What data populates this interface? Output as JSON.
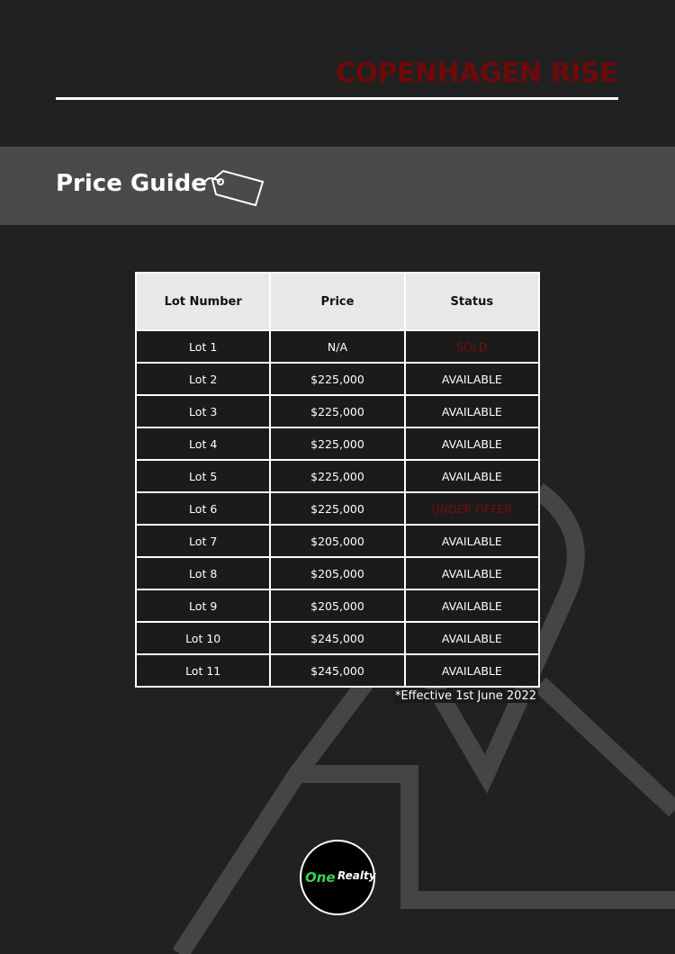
{
  "header": {
    "title": "COPENHAGEN RISE"
  },
  "section": {
    "title": "Price Guide"
  },
  "table": {
    "columns": [
      "Lot Number",
      "Price",
      "Status"
    ],
    "rows": [
      {
        "lot": "Lot 1",
        "price": "N/A",
        "status": "SOLD",
        "status_color": "#7a0c0c"
      },
      {
        "lot": "Lot 2",
        "price": "$225,000",
        "status": "AVAILABLE",
        "status_color": "#ffffff"
      },
      {
        "lot": "Lot 3",
        "price": "$225,000",
        "status": "AVAILABLE",
        "status_color": "#ffffff"
      },
      {
        "lot": "Lot 4",
        "price": "$225,000",
        "status": "AVAILABLE",
        "status_color": "#ffffff"
      },
      {
        "lot": "Lot 5",
        "price": "$225,000",
        "status": "AVAILABLE",
        "status_color": "#ffffff"
      },
      {
        "lot": "Lot 6",
        "price": "$225,000",
        "status": "UNDER OFFER",
        "status_color": "#7a0c0c"
      },
      {
        "lot": "Lot 7",
        "price": "$205,000",
        "status": "AVAILABLE",
        "status_color": "#ffffff"
      },
      {
        "lot": "Lot 8",
        "price": "$205,000",
        "status": "AVAILABLE",
        "status_color": "#ffffff"
      },
      {
        "lot": "Lot 9",
        "price": "$205,000",
        "status": "AVAILABLE",
        "status_color": "#ffffff"
      },
      {
        "lot": "Lot 10",
        "price": "$245,000",
        "status": "AVAILABLE",
        "status_color": "#ffffff"
      },
      {
        "lot": "Lot 11",
        "price": "$245,000",
        "status": "AVAILABLE",
        "status_color": "#ffffff"
      }
    ],
    "footnote": "*Effective 1st June 2022"
  },
  "logo": {
    "one": "One",
    "realty": "Realty"
  }
}
